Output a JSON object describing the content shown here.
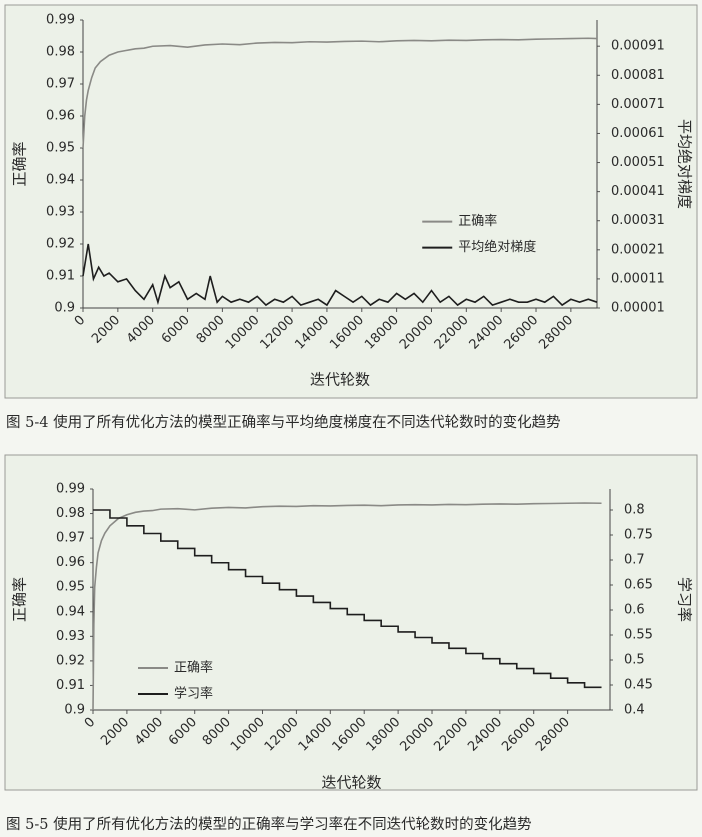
{
  "chart_data": [
    {
      "type": "line",
      "caption": "图 5-4   使用了所有优化方法的模型正确率与平均绝度梯度在不同迭代轮数时的变化趋势",
      "xlabel": "迭代轮数",
      "ylabel": "正确率",
      "y2label": "平均绝对梯度",
      "xlim": [
        0,
        29500
      ],
      "xticks": [
        0,
        2000,
        4000,
        6000,
        8000,
        10000,
        12000,
        14000,
        16000,
        18000,
        20000,
        22000,
        24000,
        26000,
        28000
      ],
      "ylim": [
        0.9,
        0.99
      ],
      "yticks": [
        0.9,
        0.91,
        0.92,
        0.93,
        0.94,
        0.95,
        0.96,
        0.97,
        0.98,
        0.99
      ],
      "y2lim": [
        1e-05,
        0.001
      ],
      "y2ticks": [
        1e-05,
        0.00011,
        0.00021,
        0.00031,
        0.00041,
        0.00051,
        0.00061,
        0.00071,
        0.00081,
        0.00091
      ],
      "legend": "right",
      "series": [
        {
          "name": "正确率",
          "color": "#8a8a86",
          "x": [
            0,
            100,
            200,
            300,
            500,
            700,
            1000,
            1500,
            2000,
            2500,
            3000,
            3500,
            4000,
            5000,
            6000,
            7000,
            8000,
            9000,
            10000,
            11000,
            12000,
            13000,
            14000,
            15000,
            16000,
            17000,
            18000,
            19000,
            20000,
            21000,
            22000,
            23000,
            24000,
            25000,
            26000,
            27000,
            28000,
            29000,
            29500
          ],
          "values": [
            0.95,
            0.96,
            0.965,
            0.968,
            0.972,
            0.975,
            0.977,
            0.979,
            0.98,
            0.9805,
            0.981,
            0.9812,
            0.9818,
            0.982,
            0.9815,
            0.9822,
            0.9825,
            0.9823,
            0.9828,
            0.983,
            0.9829,
            0.9832,
            0.9831,
            0.9833,
            0.9834,
            0.9832,
            0.9835,
            0.9836,
            0.9835,
            0.9837,
            0.9836,
            0.9838,
            0.9839,
            0.9838,
            0.984,
            0.9841,
            0.9842,
            0.9843,
            0.9842
          ]
        },
        {
          "name": "平均绝对梯度",
          "color": "#1e1e1e",
          "axis": "y2",
          "x": [
            0,
            300,
            600,
            900,
            1200,
            1500,
            2000,
            2500,
            3000,
            3500,
            4000,
            4300,
            4700,
            5000,
            5500,
            6000,
            6500,
            7000,
            7300,
            7700,
            8000,
            8500,
            9000,
            9500,
            10000,
            10500,
            11000,
            11500,
            12000,
            12500,
            13000,
            13500,
            14000,
            14500,
            15000,
            15500,
            16000,
            16500,
            17000,
            17500,
            18000,
            18500,
            19000,
            19500,
            20000,
            20500,
            21000,
            21500,
            22000,
            22500,
            23000,
            23500,
            24000,
            24500,
            25000,
            25500,
            26000,
            26500,
            27000,
            27500,
            28000,
            28500,
            29000,
            29500
          ],
          "values": [
            0.00012,
            0.00023,
            0.00011,
            0.00015,
            0.00012,
            0.00013,
            0.0001,
            0.00011,
            7e-05,
            4e-05,
            9e-05,
            3e-05,
            0.00012,
            8e-05,
            0.0001,
            4e-05,
            6e-05,
            4e-05,
            0.00012,
            3e-05,
            5e-05,
            3e-05,
            4e-05,
            3e-05,
            5e-05,
            2e-05,
            4e-05,
            3e-05,
            5e-05,
            2e-05,
            3e-05,
            4e-05,
            2e-05,
            7e-05,
            5e-05,
            3e-05,
            5e-05,
            2e-05,
            4e-05,
            3e-05,
            6e-05,
            4e-05,
            6e-05,
            3e-05,
            7e-05,
            3e-05,
            5e-05,
            2e-05,
            4e-05,
            3e-05,
            5e-05,
            2e-05,
            3e-05,
            4e-05,
            3e-05,
            3e-05,
            4e-05,
            3e-05,
            5e-05,
            2e-05,
            4e-05,
            3e-05,
            4e-05,
            3e-05
          ]
        }
      ]
    },
    {
      "type": "line",
      "caption": "图 5-5   使用了所有优化方法的模型的正确率与学习率在不同迭代轮数时的变化趋势",
      "xlabel": "迭代轮数",
      "ylabel": "正确率",
      "y2label": "学习率",
      "xlim": [
        0,
        30500
      ],
      "xticks": [
        0,
        2000,
        4000,
        6000,
        8000,
        10000,
        12000,
        14000,
        16000,
        18000,
        20000,
        22000,
        24000,
        26000,
        28000
      ],
      "ylim": [
        0.9,
        0.99
      ],
      "yticks": [
        0.9,
        0.91,
        0.92,
        0.93,
        0.94,
        0.95,
        0.96,
        0.97,
        0.98,
        0.99
      ],
      "y2lim": [
        0.4,
        0.842
      ],
      "y2ticks": [
        0.4,
        0.45,
        0.5,
        0.55,
        0.6,
        0.65,
        0.7,
        0.75,
        0.8
      ],
      "legend": "lower left",
      "series": [
        {
          "name": "正确率",
          "color": "#8a8a86",
          "x": [
            0,
            50,
            100,
            200,
            300,
            500,
            700,
            1000,
            1500,
            2000,
            2500,
            3000,
            3500,
            4000,
            5000,
            6000,
            7000,
            8000,
            9000,
            10000,
            11000,
            12000,
            13000,
            14000,
            15000,
            16000,
            17000,
            18000,
            19000,
            20000,
            21000,
            22000,
            23000,
            24000,
            25000,
            26000,
            27000,
            28000,
            29000,
            30000
          ],
          "values": [
            0.9,
            0.935,
            0.95,
            0.958,
            0.964,
            0.969,
            0.972,
            0.975,
            0.978,
            0.9795,
            0.9805,
            0.981,
            0.9812,
            0.9818,
            0.982,
            0.9815,
            0.9822,
            0.9825,
            0.9823,
            0.9828,
            0.983,
            0.9829,
            0.9832,
            0.9831,
            0.9833,
            0.9834,
            0.9832,
            0.9835,
            0.9836,
            0.9835,
            0.9837,
            0.9836,
            0.9838,
            0.9839,
            0.9838,
            0.984,
            0.9841,
            0.9842,
            0.9843,
            0.9842
          ]
        },
        {
          "name": "学习率",
          "color": "#1e1e1e",
          "axis": "y2",
          "step": true,
          "x": [
            0,
            1000,
            2000,
            3000,
            4000,
            5000,
            6000,
            7000,
            8000,
            9000,
            10000,
            11000,
            12000,
            13000,
            14000,
            15000,
            16000,
            17000,
            18000,
            19000,
            20000,
            21000,
            22000,
            23000,
            24000,
            25000,
            26000,
            27000,
            28000,
            29000,
            30000
          ],
          "values": [
            0.8,
            0.784,
            0.7683,
            0.753,
            0.7379,
            0.7231,
            0.7087,
            0.6945,
            0.6806,
            0.667,
            0.6537,
            0.6406,
            0.6278,
            0.6152,
            0.6029,
            0.5909,
            0.5791,
            0.5675,
            0.5561,
            0.545,
            0.5341,
            0.5234,
            0.513,
            0.5027,
            0.4927,
            0.4828,
            0.4732,
            0.4637,
            0.4544,
            0.4454,
            0.4454
          ]
        }
      ]
    }
  ]
}
